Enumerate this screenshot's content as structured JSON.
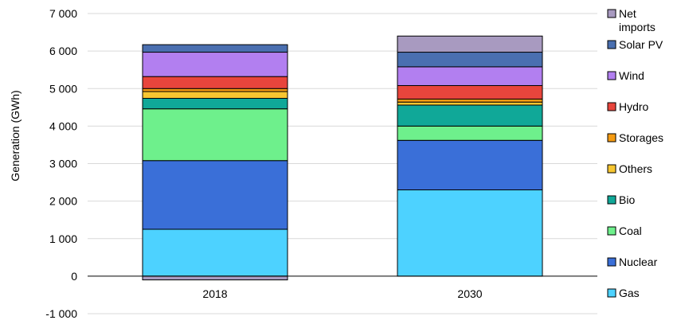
{
  "chart_data": {
    "type": "bar",
    "stacked": true,
    "ylabel": "Generation (GWh)",
    "xlabel": "",
    "ylim": [
      -1000,
      7000
    ],
    "ytick_labels": [
      "-1 000",
      "0",
      "1 000",
      "2 000",
      "3 000",
      "4 000",
      "5 000",
      "6 000",
      "7 000"
    ],
    "ytick_values": [
      -1000,
      0,
      1000,
      2000,
      3000,
      4000,
      5000,
      6000,
      7000
    ],
    "grid": "horizontal",
    "legend_position": "right",
    "categories": [
      "2018",
      "2030"
    ],
    "series": [
      {
        "name": "Gas",
        "color": "#4dd2ff",
        "values": [
          1250,
          2300
        ]
      },
      {
        "name": "Nuclear",
        "color": "#3a6fd8",
        "values": [
          1830,
          1320
        ]
      },
      {
        "name": "Coal",
        "color": "#6ef08c",
        "values": [
          1380,
          380
        ]
      },
      {
        "name": "Bio",
        "color": "#10a898",
        "values": [
          280,
          560
        ]
      },
      {
        "name": "Others",
        "color": "#f7c631",
        "values": [
          180,
          80
        ]
      },
      {
        "name": "Storages",
        "color": "#f59b12",
        "values": [
          80,
          80
        ]
      },
      {
        "name": "Hydro",
        "color": "#e8453c",
        "values": [
          320,
          360
        ]
      },
      {
        "name": "Wind",
        "color": "#b27ff0",
        "values": [
          650,
          500
        ]
      },
      {
        "name": "Solar PV",
        "color": "#4a6fb0",
        "values": [
          200,
          390
        ]
      },
      {
        "name": "Net imports",
        "color": "#a89ac0",
        "values": [
          -100,
          430
        ]
      }
    ],
    "legend": [
      {
        "name_lines": [
          "Net",
          "imports"
        ],
        "color": "#a89ac0"
      },
      {
        "name_lines": [
          "Solar PV"
        ],
        "color": "#4a6fb0"
      },
      {
        "name_lines": [
          "Wind"
        ],
        "color": "#b27ff0"
      },
      {
        "name_lines": [
          "Hydro"
        ],
        "color": "#e8453c"
      },
      {
        "name_lines": [
          "Storages"
        ],
        "color": "#f59b12"
      },
      {
        "name_lines": [
          "Others"
        ],
        "color": "#f7c631"
      },
      {
        "name_lines": [
          "Bio"
        ],
        "color": "#10a898"
      },
      {
        "name_lines": [
          "Coal"
        ],
        "color": "#6ef08c"
      },
      {
        "name_lines": [
          "Nuclear"
        ],
        "color": "#3a6fd8"
      },
      {
        "name_lines": [
          "Gas"
        ],
        "color": "#4dd2ff"
      }
    ]
  }
}
